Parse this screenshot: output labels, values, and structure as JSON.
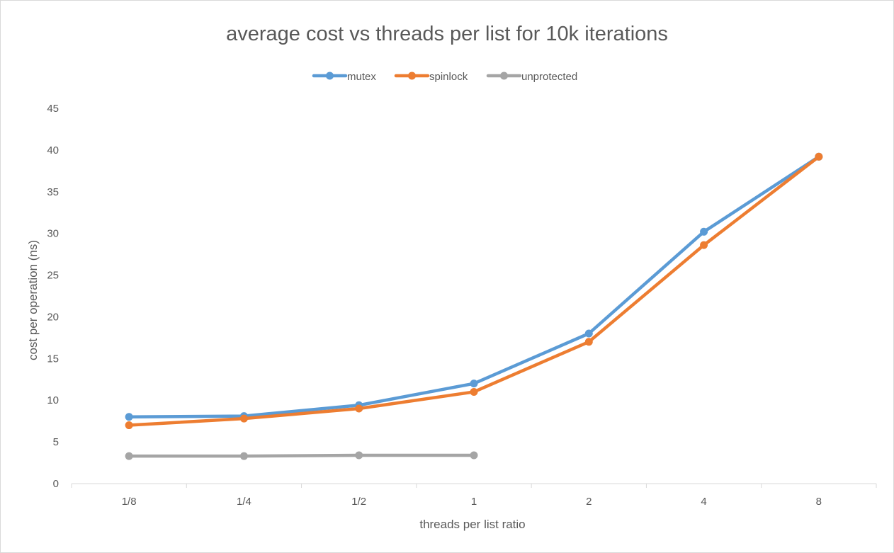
{
  "chart_data": {
    "type": "line",
    "title": "average cost vs threads per list for 10k iterations",
    "xlabel": "threads per list ratio",
    "ylabel": "cost per operation (ns)",
    "categories": [
      "1/8",
      "1/4",
      "1/2",
      "1",
      "2",
      "4",
      "8"
    ],
    "ylim": [
      0,
      45
    ],
    "yticks": [
      0,
      5,
      10,
      15,
      20,
      25,
      30,
      35,
      40,
      45
    ],
    "grid": false,
    "legend_position": "top",
    "series": [
      {
        "name": "mutex",
        "color": "#5b9bd5",
        "values": [
          8.0,
          8.1,
          9.4,
          12.0,
          18.0,
          30.2,
          39.2
        ]
      },
      {
        "name": "spinlock",
        "color": "#ed7d31",
        "values": [
          7.0,
          7.8,
          9.0,
          11.0,
          17.0,
          28.6,
          39.2
        ]
      },
      {
        "name": "unprotected",
        "color": "#a5a5a5",
        "values": [
          3.3,
          3.3,
          3.4,
          3.4,
          null,
          null,
          null
        ]
      }
    ]
  }
}
